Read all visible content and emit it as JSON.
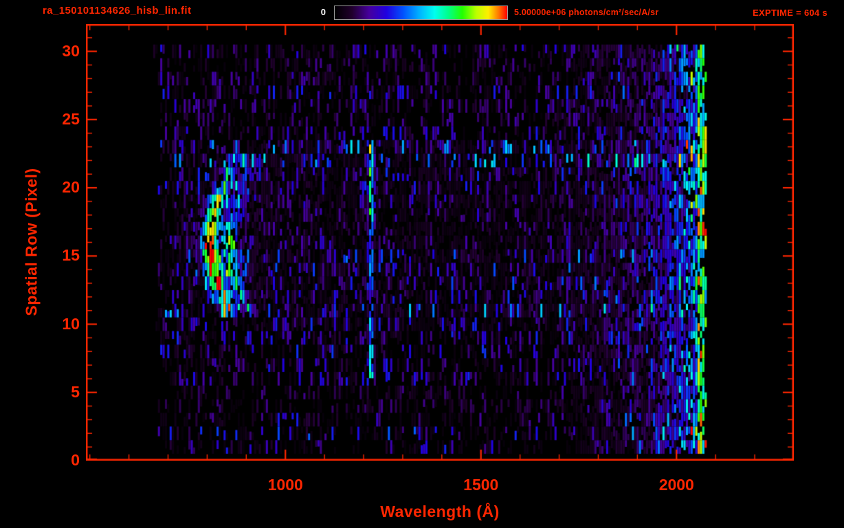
{
  "accent": "#ff2600",
  "white": "#ffffff",
  "header": {
    "title": "ra_150101134626_hisb_lin.fit",
    "exptime_label": "EXPTIME = 604 s",
    "colorbar": {
      "min_label": "0",
      "max_label": "5.00000e+06 photons/cm²/sec/A/sr"
    }
  },
  "chart_data": {
    "type": "heatmap",
    "title": "ra_150101134626_hisb_lin.fit",
    "xlabel": "Wavelength (Å)",
    "ylabel": "Spatial Row (Pixel)",
    "xlim": [
      490,
      2300
    ],
    "ylim": [
      0,
      32
    ],
    "x_major_ticks": [
      1000,
      1500,
      2000
    ],
    "x_minor_step": 100,
    "y_major_ticks": [
      0,
      5,
      10,
      15,
      20,
      25,
      30
    ],
    "y_minor_step": 1,
    "colorbar": {
      "min": 0,
      "max": 5000000,
      "units": "photons/cm²/sec/A/sr"
    },
    "exposure_seconds": 604,
    "data_extent": {
      "wl_min": 660,
      "wl_max": 2078,
      "row_min": 1,
      "row_max": 30
    },
    "bin_width_angstrom": 6,
    "seed": 1337,
    "colormap_stops": [
      [
        0.0,
        "#000000"
      ],
      [
        0.1,
        "#20002c"
      ],
      [
        0.2,
        "#46009e"
      ],
      [
        0.3,
        "#2000e0"
      ],
      [
        0.4,
        "#0055ff"
      ],
      [
        0.5,
        "#00bbff"
      ],
      [
        0.58,
        "#00ffee"
      ],
      [
        0.66,
        "#00ff88"
      ],
      [
        0.74,
        "#22ff00"
      ],
      [
        0.82,
        "#bbff00"
      ],
      [
        0.89,
        "#ffee00"
      ],
      [
        0.95,
        "#ff7700"
      ],
      [
        1.0,
        "#ff0000"
      ]
    ],
    "noise": {
      "bright_rows": [
        11,
        22,
        23
      ],
      "gap_probability": 0.3,
      "sparse_rows_gap_probability": 0.5,
      "base_amplitude": 0.3
    },
    "features": [
      {
        "name": "crescent-arc",
        "description": "bright curved emission arc, green-yellow core with blue halo",
        "row_min": 11,
        "row_max": 22,
        "center_row": 16,
        "center_wl": 805,
        "curvature": 2.0,
        "sigma_wl": 15,
        "second_offset": 50,
        "row_sigma": 4.5,
        "peak": 0.85,
        "peak_value_photons": 4300000
      },
      {
        "name": "emission-line",
        "description": "narrow vertical emission line near Lyman-alpha",
        "wavelength": 1216,
        "sigma_wl": 5.5,
        "row_min": 6,
        "row_max": 23,
        "peak": 0.55,
        "peak_value_photons": 2800000
      },
      {
        "name": "right-edge-bright-band",
        "description": "brightness rising toward long-wavelength edge, cyan/green streaks",
        "wl_start": 1680,
        "wl_strong": 1930,
        "wl_end": 2078,
        "peak": 0.75,
        "peak_value_photons": 3800000
      },
      {
        "name": "red-sparks",
        "description": "near-saturated orange/red cells at extreme right edge",
        "wl_start": 2052,
        "probability": 0.16,
        "peak": 1.0,
        "peak_value_photons": 5000000
      }
    ]
  }
}
